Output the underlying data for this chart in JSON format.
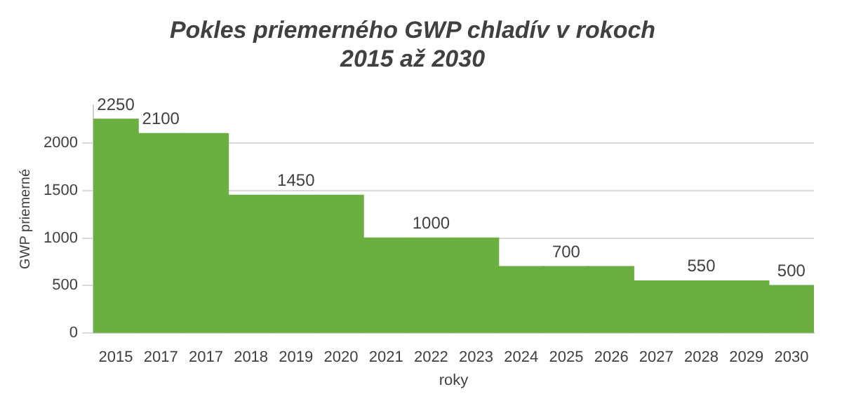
{
  "chart_data": {
    "type": "bar",
    "title": "Pokles priemerného GWP chladív v rokoch\n2015 až 2030",
    "xlabel": "roky",
    "ylabel": "GWP priemerné",
    "categories": [
      "2015",
      "2017",
      "2017",
      "2018",
      "2019",
      "2020",
      "2021",
      "2022",
      "2023",
      "2024",
      "2025",
      "2026",
      "2027",
      "2028",
      "2029",
      "2030"
    ],
    "values": [
      2250,
      2100,
      2100,
      1450,
      1450,
      1450,
      1000,
      1000,
      1000,
      700,
      700,
      700,
      550,
      550,
      550,
      500
    ],
    "value_labels": [
      "2250",
      "2100",
      null,
      null,
      "1450",
      null,
      null,
      "1000",
      null,
      null,
      "700",
      null,
      null,
      "550",
      null,
      "500"
    ],
    "color": "#6aaf3f",
    "ylim": [
      0,
      2400
    ],
    "yticks": [
      0,
      500,
      1000,
      1500,
      2000
    ],
    "grid": "y"
  }
}
